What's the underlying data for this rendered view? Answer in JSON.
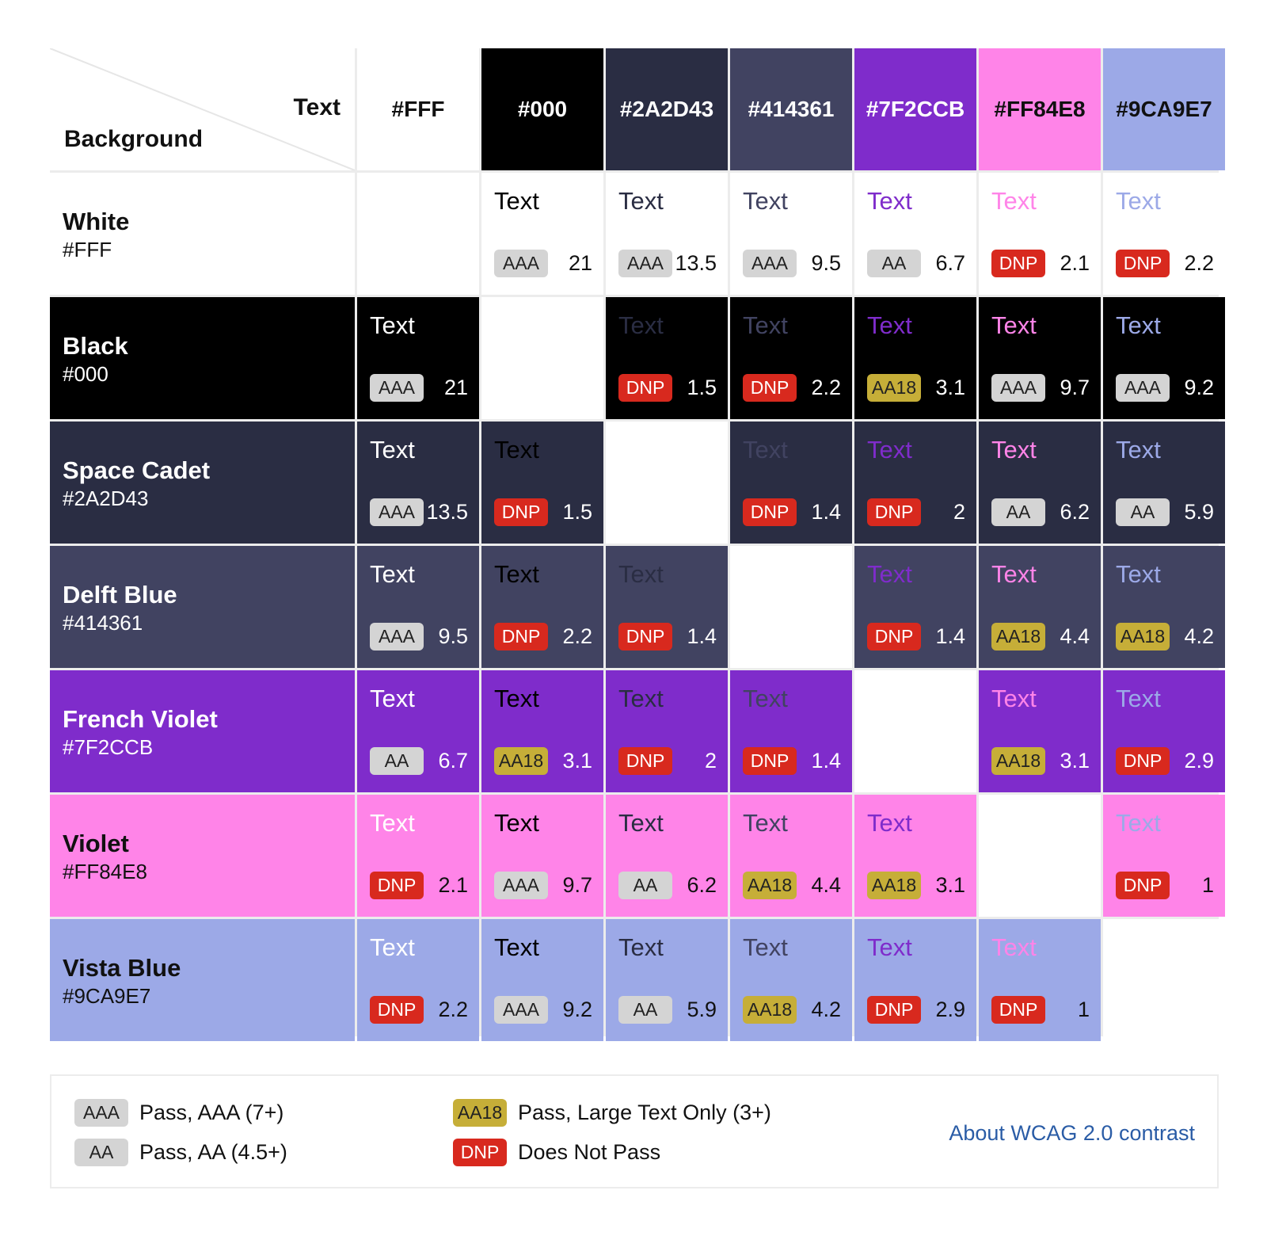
{
  "header": {
    "text_label": "Text",
    "background_label": "Background"
  },
  "colors": [
    {
      "name": "White",
      "hex": "#FFF",
      "css": "#ffffff"
    },
    {
      "name": "Black",
      "hex": "#000",
      "css": "#000000"
    },
    {
      "name": "Space Cadet",
      "hex": "#2A2D43",
      "css": "#2a2d43"
    },
    {
      "name": "Delft Blue",
      "hex": "#414361",
      "css": "#414361"
    },
    {
      "name": "French Violet",
      "hex": "#7F2CCB",
      "css": "#7f2ccb"
    },
    {
      "name": "Violet",
      "hex": "#FF84E8",
      "css": "#ff84e8"
    },
    {
      "name": "Vista Blue",
      "hex": "#9CA9E7",
      "css": "#9ca9e7"
    }
  ],
  "sample_text": "Text",
  "matrix": [
    [
      null,
      {
        "grade": "AAA",
        "ratio": "21"
      },
      {
        "grade": "AAA",
        "ratio": "13.5"
      },
      {
        "grade": "AAA",
        "ratio": "9.5"
      },
      {
        "grade": "AA",
        "ratio": "6.7"
      },
      {
        "grade": "DNP",
        "ratio": "2.1"
      },
      {
        "grade": "DNP",
        "ratio": "2.2"
      }
    ],
    [
      {
        "grade": "AAA",
        "ratio": "21"
      },
      null,
      {
        "grade": "DNP",
        "ratio": "1.5"
      },
      {
        "grade": "DNP",
        "ratio": "2.2"
      },
      {
        "grade": "AA18",
        "ratio": "3.1"
      },
      {
        "grade": "AAA",
        "ratio": "9.7"
      },
      {
        "grade": "AAA",
        "ratio": "9.2"
      }
    ],
    [
      {
        "grade": "AAA",
        "ratio": "13.5"
      },
      {
        "grade": "DNP",
        "ratio": "1.5"
      },
      null,
      {
        "grade": "DNP",
        "ratio": "1.4"
      },
      {
        "grade": "DNP",
        "ratio": "2"
      },
      {
        "grade": "AA",
        "ratio": "6.2"
      },
      {
        "grade": "AA",
        "ratio": "5.9"
      }
    ],
    [
      {
        "grade": "AAA",
        "ratio": "9.5"
      },
      {
        "grade": "DNP",
        "ratio": "2.2"
      },
      {
        "grade": "DNP",
        "ratio": "1.4"
      },
      null,
      {
        "grade": "DNP",
        "ratio": "1.4"
      },
      {
        "grade": "AA18",
        "ratio": "4.4"
      },
      {
        "grade": "AA18",
        "ratio": "4.2"
      }
    ],
    [
      {
        "grade": "AA",
        "ratio": "6.7"
      },
      {
        "grade": "AA18",
        "ratio": "3.1"
      },
      {
        "grade": "DNP",
        "ratio": "2"
      },
      {
        "grade": "DNP",
        "ratio": "1.4"
      },
      null,
      {
        "grade": "AA18",
        "ratio": "3.1"
      },
      {
        "grade": "DNP",
        "ratio": "2.9"
      }
    ],
    [
      {
        "grade": "DNP",
        "ratio": "2.1"
      },
      {
        "grade": "AAA",
        "ratio": "9.7"
      },
      {
        "grade": "AA",
        "ratio": "6.2"
      },
      {
        "grade": "AA18",
        "ratio": "4.4"
      },
      {
        "grade": "AA18",
        "ratio": "3.1"
      },
      null,
      {
        "grade": "DNP",
        "ratio": "1"
      }
    ],
    [
      {
        "grade": "DNP",
        "ratio": "2.2"
      },
      {
        "grade": "AAA",
        "ratio": "9.2"
      },
      {
        "grade": "AA",
        "ratio": "5.9"
      },
      {
        "grade": "AA18",
        "ratio": "4.2"
      },
      {
        "grade": "DNP",
        "ratio": "2.9"
      },
      {
        "grade": "DNP",
        "ratio": "1"
      },
      null
    ]
  ],
  "badge_styles": {
    "AAA": {
      "bg": "#d4d4d4",
      "fg": "#222222"
    },
    "AA": {
      "bg": "#d4d4d4",
      "fg": "#222222"
    },
    "AA18": {
      "bg": "#c6ae38",
      "fg": "#222222"
    },
    "DNP": {
      "bg": "#d8291e",
      "fg": "#ffffff"
    }
  },
  "legend": {
    "items": [
      {
        "badge": "AAA",
        "desc": "Pass, AAA (7+)"
      },
      {
        "badge": "AA",
        "desc": "Pass, AA (4.5+)"
      },
      {
        "badge": "AA18",
        "desc": "Pass, Large Text Only (3+)"
      },
      {
        "badge": "DNP",
        "desc": "Does Not Pass"
      }
    ],
    "link_text": "About WCAG 2.0 contrast"
  }
}
